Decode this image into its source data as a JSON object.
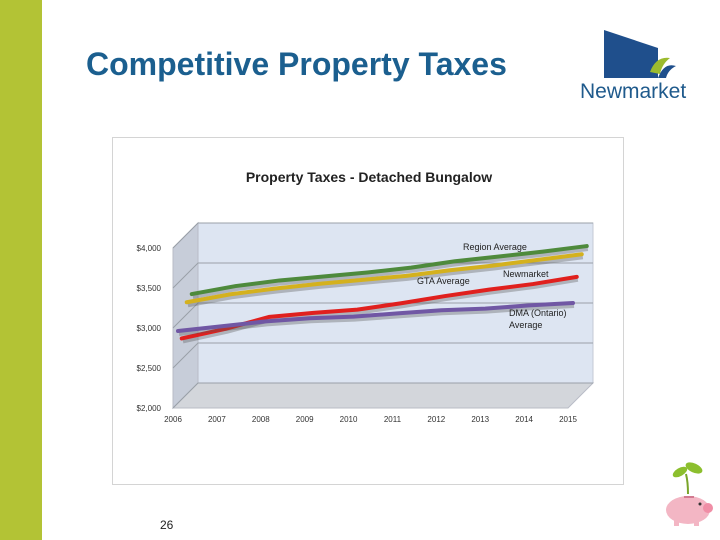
{
  "slide": {
    "title": "Competitive Property Taxes",
    "page_number": "26",
    "accent_color": "#b3c335",
    "title_color": "#1b5f8f"
  },
  "logo": {
    "text": "Newmarket",
    "icon": "newmarket-sail-logo-icon",
    "colors": [
      "#1f4f8c",
      "#9cbb2e",
      "#ffffff"
    ]
  },
  "decoration": {
    "icon": "piggy-bank-with-sprout-icon"
  },
  "chart_data": {
    "type": "line",
    "title": "Property Taxes - Detached Bungalow",
    "xlabel": "",
    "ylabel": "",
    "x": [
      "2006",
      "2007",
      "2008",
      "2009",
      "2010",
      "2011",
      "2012",
      "2013",
      "2014",
      "2015"
    ],
    "ylim": [
      2000,
      4000
    ],
    "yticks": [
      "$2,000",
      "$2,500",
      "$3,000",
      "$3,500",
      "$4,000"
    ],
    "grid": true,
    "legend": "direct labels",
    "style": "3d",
    "series": [
      {
        "name": "Region Average",
        "color": "#4e8a3c",
        "values": [
          3190,
          3290,
          3360,
          3410,
          3460,
          3520,
          3600,
          3660,
          3720,
          3790
        ]
      },
      {
        "name": "GTA Average",
        "color": "#d4b11e",
        "values": [
          3150,
          3250,
          3320,
          3380,
          3430,
          3480,
          3550,
          3610,
          3680,
          3750
        ]
      },
      {
        "name": "Newmarket",
        "color": "#e0201e",
        "values": [
          2760,
          2880,
          3030,
          3080,
          3120,
          3200,
          3290,
          3370,
          3440,
          3530
        ]
      },
      {
        "name": "DMA (Ontario) Average",
        "color": "#7057a4",
        "values": [
          2900,
          2960,
          3020,
          3060,
          3080,
          3120,
          3160,
          3180,
          3220,
          3250
        ]
      }
    ]
  }
}
